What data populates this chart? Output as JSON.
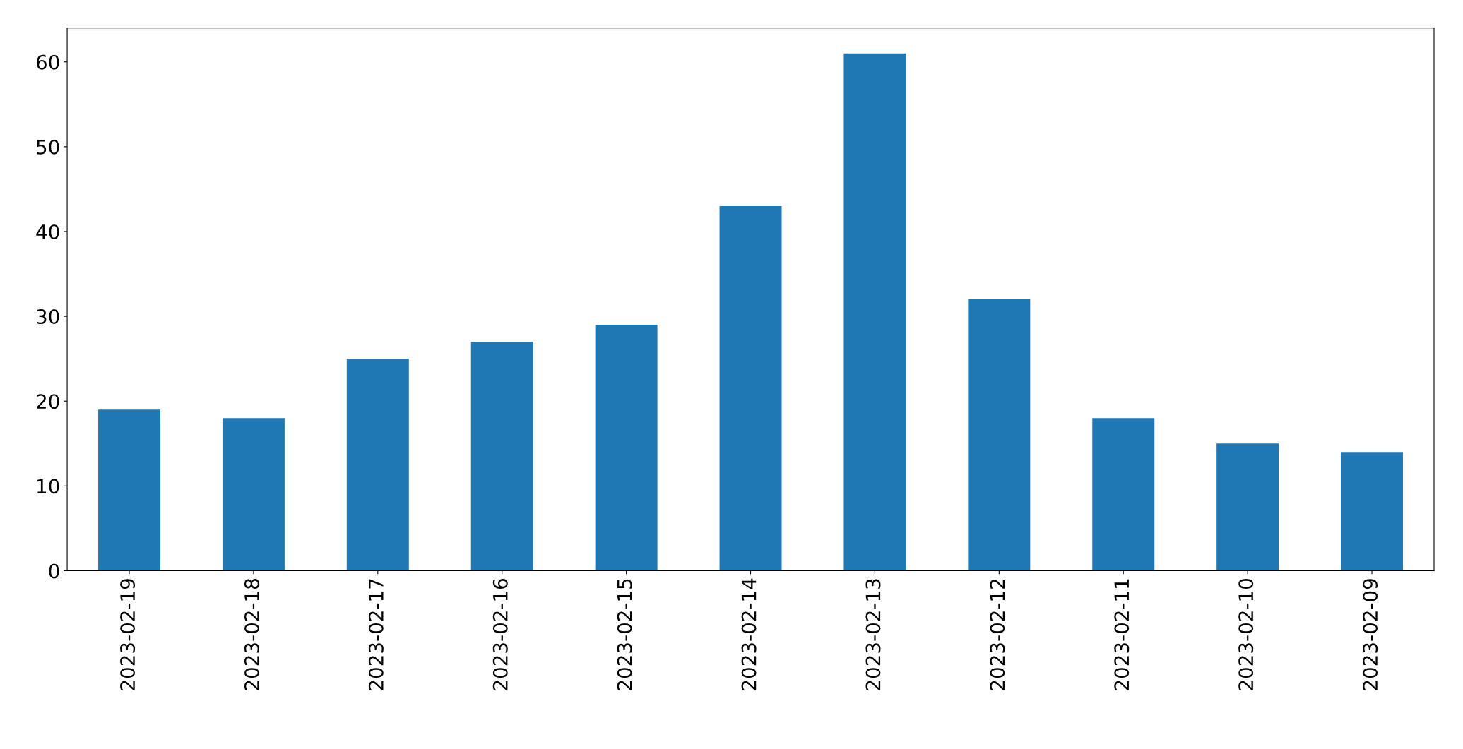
{
  "chart_data": {
    "type": "bar",
    "categories": [
      "2023-02-19",
      "2023-02-18",
      "2023-02-17",
      "2023-02-16",
      "2023-02-15",
      "2023-02-14",
      "2023-02-13",
      "2023-02-12",
      "2023-02-11",
      "2023-02-10",
      "2023-02-09"
    ],
    "values": [
      19,
      18,
      25,
      27,
      29,
      43,
      61,
      32,
      18,
      15,
      14
    ],
    "color": "#1f77b4",
    "ylim": [
      0,
      64
    ],
    "yticks": [
      0,
      10,
      20,
      30,
      40,
      50,
      60
    ],
    "grid": false,
    "legend": false
  }
}
